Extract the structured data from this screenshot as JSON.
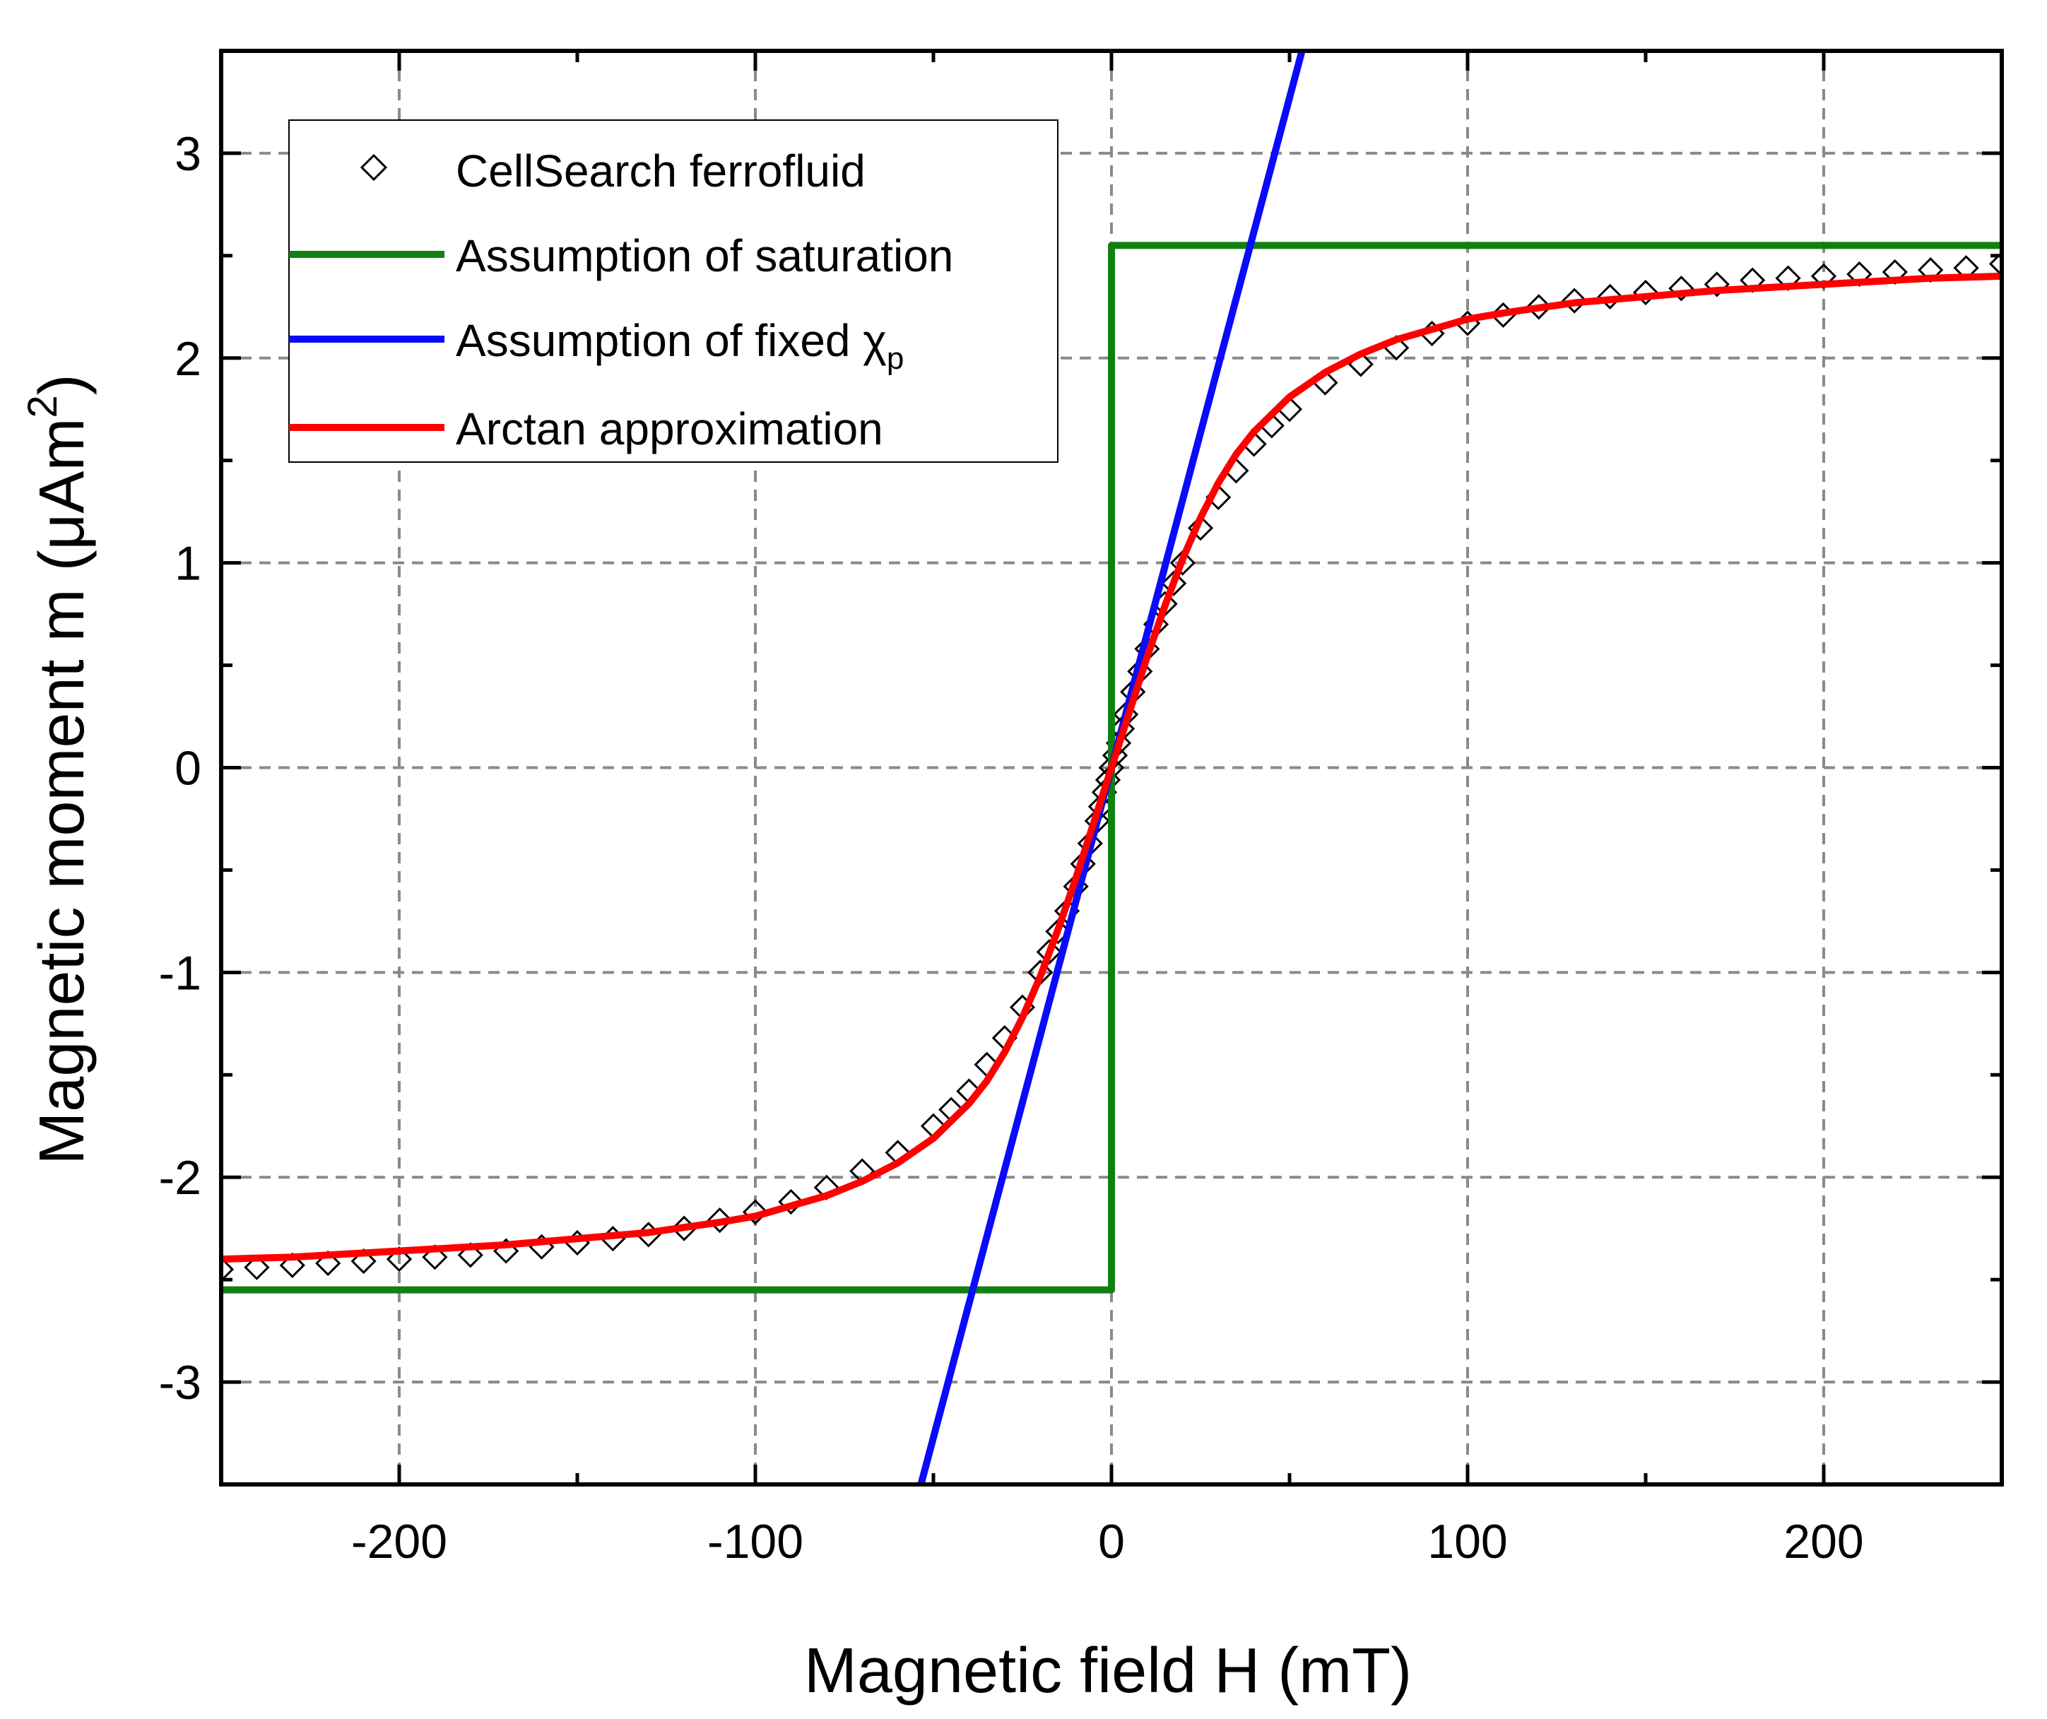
{
  "chart_data": {
    "type": "line",
    "title": "",
    "xlabel": "Magnetic field H (mT)",
    "ylabel_main": "Magnetic moment m (",
    "ylabel_mu": "μ",
    "ylabel_unit": "Am",
    "ylabel_sup": "2",
    "ylabel_close": ")",
    "xlim": [
      -250,
      250
    ],
    "ylim": [
      -3.5,
      3.5
    ],
    "xticks": [
      -200,
      -100,
      0,
      100,
      200
    ],
    "xtick_labels": [
      "-200",
      "-100",
      "0",
      "100",
      "200"
    ],
    "yticks": [
      -3,
      -2,
      -1,
      0,
      1,
      2,
      3
    ],
    "ytick_labels": [
      "-3",
      "-2",
      "-1",
      "0",
      "1",
      "2",
      "3"
    ],
    "x_minor_step": 50,
    "y_minor_step": 0.5,
    "grid": true,
    "legend_position": "top-left",
    "legend": [
      {
        "key": "data",
        "label": "CellSearch ferrofluid",
        "symbol": "diamond-open"
      },
      {
        "key": "sat",
        "label": "Assumption of saturation",
        "symbol": "line"
      },
      {
        "key": "chi",
        "label": "Assumption of fixed χ",
        "sub": "p",
        "symbol": "line"
      },
      {
        "key": "arctan",
        "label": "Arctan approximation",
        "symbol": "line"
      }
    ],
    "series": [
      {
        "name": "CellSearch ferrofluid",
        "style": "markers",
        "marker": "diamond-open",
        "color": "#000000",
        "x": [
          -250,
          -240,
          -230,
          -220,
          -210,
          -200,
          -190,
          -180,
          -170,
          -160,
          -150,
          -140,
          -130,
          -120,
          -110,
          -100,
          -90,
          -80,
          -70,
          -60,
          -50,
          -45,
          -40,
          -35,
          -30,
          -25,
          -20,
          -17.5,
          -15,
          -12.5,
          -10,
          -8,
          -6,
          -4,
          -3,
          -2,
          -1,
          0,
          1,
          2,
          3,
          4,
          6,
          8,
          10,
          12.5,
          15,
          17.5,
          20,
          25,
          30,
          35,
          40,
          45,
          50,
          60,
          70,
          80,
          90,
          100,
          110,
          120,
          130,
          140,
          150,
          160,
          170,
          180,
          190,
          200,
          210,
          220,
          230,
          240,
          250
        ],
        "y": [
          -2.45,
          -2.44,
          -2.43,
          -2.42,
          -2.41,
          -2.4,
          -2.39,
          -2.38,
          -2.36,
          -2.34,
          -2.32,
          -2.3,
          -2.28,
          -2.25,
          -2.21,
          -2.17,
          -2.12,
          -2.05,
          -1.97,
          -1.88,
          -1.75,
          -1.67,
          -1.58,
          -1.45,
          -1.32,
          -1.17,
          -1.0,
          -0.9,
          -0.8,
          -0.7,
          -0.58,
          -0.47,
          -0.37,
          -0.26,
          -0.19,
          -0.12,
          -0.06,
          0.0,
          0.06,
          0.12,
          0.19,
          0.26,
          0.37,
          0.47,
          0.58,
          0.7,
          0.8,
          0.9,
          1.0,
          1.17,
          1.32,
          1.45,
          1.58,
          1.67,
          1.75,
          1.88,
          1.97,
          2.05,
          2.12,
          2.17,
          2.21,
          2.25,
          2.28,
          2.3,
          2.32,
          2.34,
          2.36,
          2.38,
          2.39,
          2.4,
          2.41,
          2.42,
          2.43,
          2.44,
          2.46
        ]
      },
      {
        "name": "Assumption of saturation",
        "style": "line",
        "color": "#118011",
        "x": [
          -250,
          0,
          0,
          250
        ],
        "y": [
          -2.55,
          -2.55,
          2.55,
          2.55
        ]
      },
      {
        "name": "Assumption of fixed χp",
        "style": "line",
        "color": "#0a0aff",
        "x": [
          -53.5,
          53.5
        ],
        "y": [
          -3.5,
          3.5
        ]
      },
      {
        "name": "Arctan approximation",
        "style": "line",
        "color": "#ff0000",
        "x": [
          -250,
          -230,
          -210,
          -190,
          -170,
          -150,
          -130,
          -110,
          -100,
          -90,
          -80,
          -70,
          -60,
          -50,
          -40,
          -35,
          -30,
          -25,
          -20,
          -15,
          -10,
          -5,
          0,
          5,
          10,
          15,
          20,
          25,
          30,
          35,
          40,
          50,
          60,
          70,
          80,
          90,
          100,
          110,
          130,
          150,
          170,
          190,
          210,
          230,
          250
        ],
        "y": [
          -2.4,
          -2.39,
          -2.37,
          -2.35,
          -2.33,
          -2.3,
          -2.27,
          -2.22,
          -2.19,
          -2.14,
          -2.09,
          -2.02,
          -1.93,
          -1.81,
          -1.64,
          -1.53,
          -1.39,
          -1.22,
          -1.02,
          -0.79,
          -0.54,
          -0.27,
          0.0,
          0.27,
          0.54,
          0.79,
          1.02,
          1.22,
          1.39,
          1.53,
          1.64,
          1.81,
          1.93,
          2.02,
          2.09,
          2.14,
          2.19,
          2.22,
          2.27,
          2.3,
          2.33,
          2.35,
          2.37,
          2.39,
          2.4
        ]
      }
    ]
  }
}
